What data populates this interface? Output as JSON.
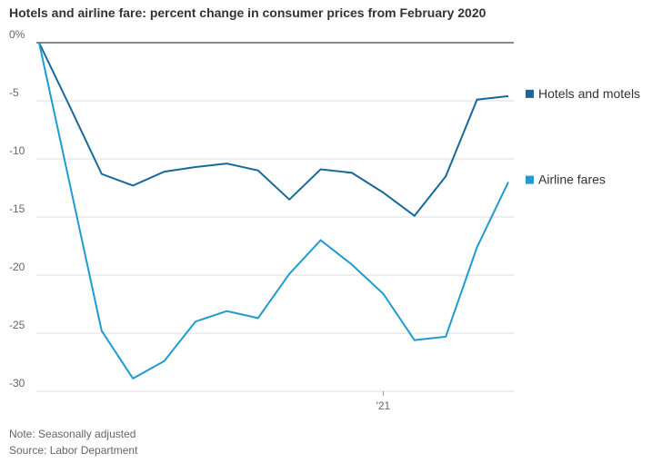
{
  "chart_data": {
    "type": "line",
    "title": "Hotels and airline fare: percent change in consumer prices from February 2020",
    "categories": [
      null,
      null,
      null,
      null,
      null,
      null,
      null,
      null,
      null,
      null,
      null,
      "'21",
      null,
      null,
      null,
      null
    ],
    "series": [
      {
        "name": "Hotels and motels",
        "color": "#17699a",
        "values": [
          0,
          -5.6,
          -11.3,
          -12.3,
          -11.1,
          -10.7,
          -10.4,
          -11.0,
          -13.5,
          -10.9,
          -11.2,
          -12.9,
          -14.9,
          -11.5,
          -4.9,
          -4.6
        ]
      },
      {
        "name": "Airline fares",
        "color": "#1e9bd0",
        "values": [
          0,
          -12.4,
          -24.8,
          -28.9,
          -27.4,
          -24.0,
          -23.1,
          -23.7,
          -19.9,
          -17.0,
          -19.1,
          -21.6,
          -25.6,
          -25.3,
          -17.6,
          -12.0
        ]
      }
    ],
    "ylim": [
      -30,
      0
    ],
    "yticks": [
      {
        "value": 0,
        "label": "0%"
      },
      -5,
      -10,
      -15,
      -20,
      -25,
      -30
    ],
    "grid": true,
    "legend": "right",
    "notes": [
      "Note: Seasonally adjusted",
      "Source: Labor Department"
    ]
  }
}
